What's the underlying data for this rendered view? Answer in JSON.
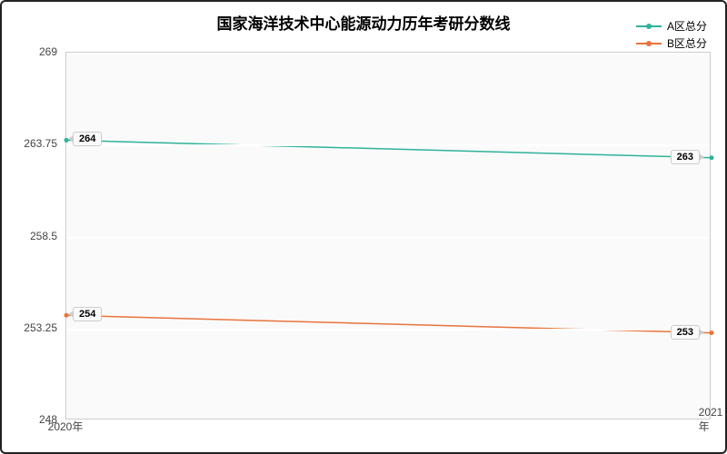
{
  "chart": {
    "type": "line",
    "title": "国家海洋技术中心能源动力历年考研分数线",
    "title_fontsize": 17,
    "title_fontweight": "bold",
    "background_color": "#ffffff",
    "plot_background": "#fafafa",
    "border_color": "#222222",
    "grid_color": "#ffffff",
    "grid_line_width": 2,
    "axis_label_color": "#444444",
    "axis_fontsize": 12,
    "xlim": [
      0,
      1
    ],
    "ylim": [
      248,
      269
    ],
    "yticks": [
      248,
      253.25,
      258.5,
      263.75,
      269
    ],
    "ytick_labels": [
      "248",
      "253.25",
      "258.5",
      "263.75",
      "269"
    ],
    "xticks": [
      0,
      1
    ],
    "xtick_labels": [
      "2020年",
      "2021年"
    ],
    "legend_position": "top-right",
    "series": [
      {
        "name": "A区总分",
        "color": "#2eb39a",
        "line_width": 1.5,
        "marker": "circle",
        "marker_size": 5,
        "x": [
          0,
          1
        ],
        "y": [
          264,
          263
        ],
        "labels": [
          "264",
          "263"
        ]
      },
      {
        "name": "B区总分",
        "color": "#e8743b",
        "line_width": 1.5,
        "marker": "circle",
        "marker_size": 5,
        "x": [
          0,
          1
        ],
        "y": [
          254,
          253
        ],
        "labels": [
          "254",
          "253"
        ]
      }
    ]
  }
}
